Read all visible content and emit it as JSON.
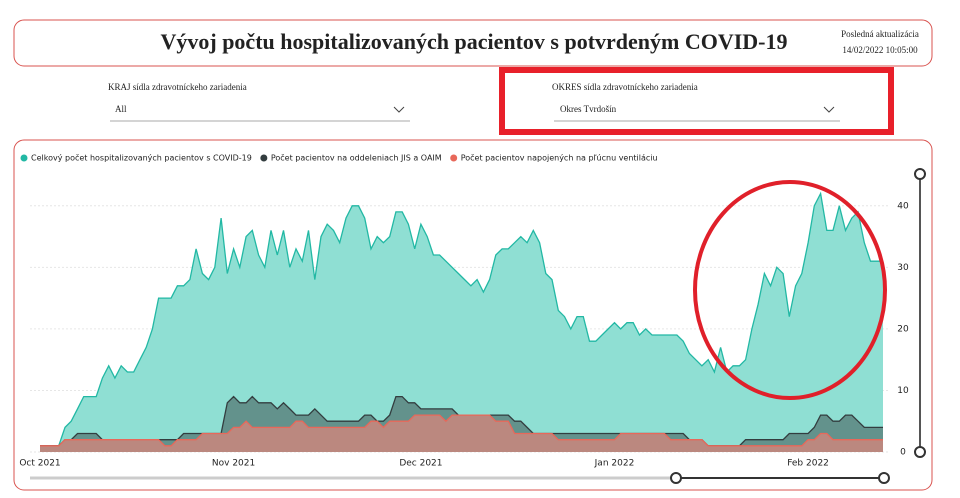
{
  "header": {
    "title": "Vývoj počtu hospitalizovaných pacientov s potvrdeným COVID-19",
    "update_label": "Posledná aktualizácia",
    "update_time": "14/02/2022 10:05:00"
  },
  "filters": [
    {
      "label": "KRAJ sídla zdravotníckeho zariadenia",
      "value": "All"
    },
    {
      "label": "OKRES sídla zdravotníckeho zariadenia",
      "value": "Okres Tvrdošín"
    }
  ],
  "chart_data": {
    "type": "area",
    "categories": [
      "Oct 2021",
      null,
      null,
      null,
      null,
      null,
      null,
      null,
      null,
      null,
      null,
      null,
      null,
      null,
      null,
      null,
      null,
      null,
      null,
      null,
      null,
      null,
      null,
      null,
      null,
      null,
      null,
      null,
      null,
      null,
      null,
      "Nov 2021",
      null,
      null,
      null,
      null,
      null,
      null,
      null,
      null,
      null,
      null,
      null,
      null,
      null,
      null,
      null,
      null,
      null,
      null,
      null,
      null,
      null,
      null,
      null,
      null,
      null,
      null,
      null,
      null,
      null,
      "Dec 2021",
      null,
      null,
      null,
      null,
      null,
      null,
      null,
      null,
      null,
      null,
      null,
      null,
      null,
      null,
      null,
      null,
      null,
      null,
      null,
      null,
      null,
      null,
      null,
      null,
      null,
      null,
      null,
      null,
      null,
      null,
      "Jan 2022",
      null,
      null,
      null,
      null,
      null,
      null,
      null,
      null,
      null,
      null,
      null,
      null,
      null,
      null,
      null,
      null,
      null,
      null,
      null,
      null,
      null,
      null,
      null,
      null,
      null,
      null,
      null,
      null,
      null,
      null,
      "Feb 2022",
      null,
      null,
      null,
      null,
      null,
      null,
      null,
      null,
      null,
      null,
      null,
      null
    ],
    "series": [
      {
        "name": "Celkový počet hospitalizovaných pacientov s COVID-19",
        "color": "#22b8a4",
        "values": [
          1,
          1,
          1,
          1,
          4,
          5,
          7,
          9,
          9,
          9,
          12,
          14,
          12,
          14,
          13,
          13,
          15,
          17,
          20,
          25,
          25,
          25,
          27,
          27,
          28,
          33,
          29,
          28,
          30,
          38,
          29,
          33,
          30,
          35,
          36,
          32,
          30,
          36,
          32,
          36,
          30,
          33,
          31,
          36,
          28,
          35,
          37,
          36,
          34,
          38,
          40,
          40,
          38,
          33,
          35,
          34,
          35,
          39,
          39,
          37,
          33,
          37,
          35,
          32,
          32,
          31,
          30,
          29,
          28,
          27,
          28,
          26,
          28,
          32,
          33,
          33,
          34,
          35,
          34,
          36,
          34,
          29,
          28,
          23,
          22,
          20,
          22,
          22,
          18,
          18,
          19,
          20,
          21,
          20,
          21,
          21,
          19,
          20,
          19,
          19,
          19,
          19,
          19,
          18,
          16,
          15,
          14,
          15,
          13,
          17,
          13,
          14,
          14,
          15,
          20,
          24,
          29,
          27,
          30,
          29,
          22,
          27,
          29,
          34,
          40,
          42,
          36,
          36,
          40,
          36,
          38,
          39,
          34,
          31,
          31,
          31
        ]
      },
      {
        "name": "Počet pacientov na oddeleniach JIS a OAIM",
        "color": "#333d3f",
        "values": [
          1,
          1,
          1,
          1,
          2,
          2,
          3,
          3,
          3,
          3,
          2,
          2,
          2,
          2,
          2,
          2,
          2,
          2,
          2,
          2,
          2,
          2,
          2,
          3,
          3,
          3,
          3,
          3,
          3,
          3,
          8,
          9,
          8,
          8,
          9,
          8,
          8,
          8,
          7,
          8,
          7,
          6,
          6,
          6,
          7,
          6,
          5,
          5,
          5,
          5,
          5,
          5,
          6,
          6,
          5,
          5,
          6,
          9,
          9,
          8,
          8,
          7,
          7,
          7,
          7,
          7,
          7,
          6,
          6,
          6,
          6,
          6,
          6,
          6,
          6,
          6,
          5,
          5,
          4,
          3,
          3,
          3,
          3,
          3,
          3,
          3,
          3,
          3,
          3,
          3,
          3,
          3,
          3,
          3,
          3,
          3,
          3,
          3,
          3,
          3,
          3,
          3,
          3,
          3,
          2,
          2,
          2,
          1,
          1,
          1,
          1,
          1,
          1,
          2,
          2,
          2,
          2,
          2,
          2,
          2,
          3,
          3,
          3,
          3,
          4,
          6,
          6,
          5,
          5,
          6,
          6,
          5,
          4,
          4,
          4,
          4
        ]
      },
      {
        "name": "Počet pacientov napojených na pľúcnu ventiláciu",
        "color": "#e8685a",
        "values": [
          1,
          1,
          1,
          1,
          2,
          2,
          2,
          2,
          2,
          2,
          2,
          2,
          2,
          2,
          2,
          2,
          2,
          2,
          2,
          2,
          1,
          1,
          2,
          2,
          2,
          2,
          3,
          3,
          3,
          3,
          3,
          4,
          4,
          5,
          4,
          4,
          4,
          4,
          4,
          4,
          4,
          5,
          5,
          4,
          4,
          4,
          4,
          4,
          4,
          4,
          4,
          4,
          4,
          5,
          5,
          4,
          5,
          5,
          5,
          5,
          6,
          6,
          6,
          6,
          6,
          5,
          6,
          6,
          6,
          6,
          6,
          6,
          6,
          5,
          5,
          5,
          3,
          3,
          3,
          3,
          3,
          3,
          3,
          2,
          2,
          2,
          2,
          2,
          2,
          2,
          2,
          2,
          2,
          3,
          3,
          3,
          3,
          3,
          3,
          3,
          3,
          2,
          2,
          2,
          2,
          2,
          2,
          1,
          1,
          1,
          1,
          1,
          1,
          1,
          1,
          1,
          1,
          1,
          1,
          1,
          1,
          1,
          1,
          2,
          2,
          3,
          3,
          2,
          2,
          2,
          2,
          2,
          2,
          2,
          2,
          2
        ]
      }
    ],
    "ylim": [
      0,
      45
    ],
    "yticks": [
      0,
      10,
      20,
      30,
      40
    ],
    "grid": true
  }
}
